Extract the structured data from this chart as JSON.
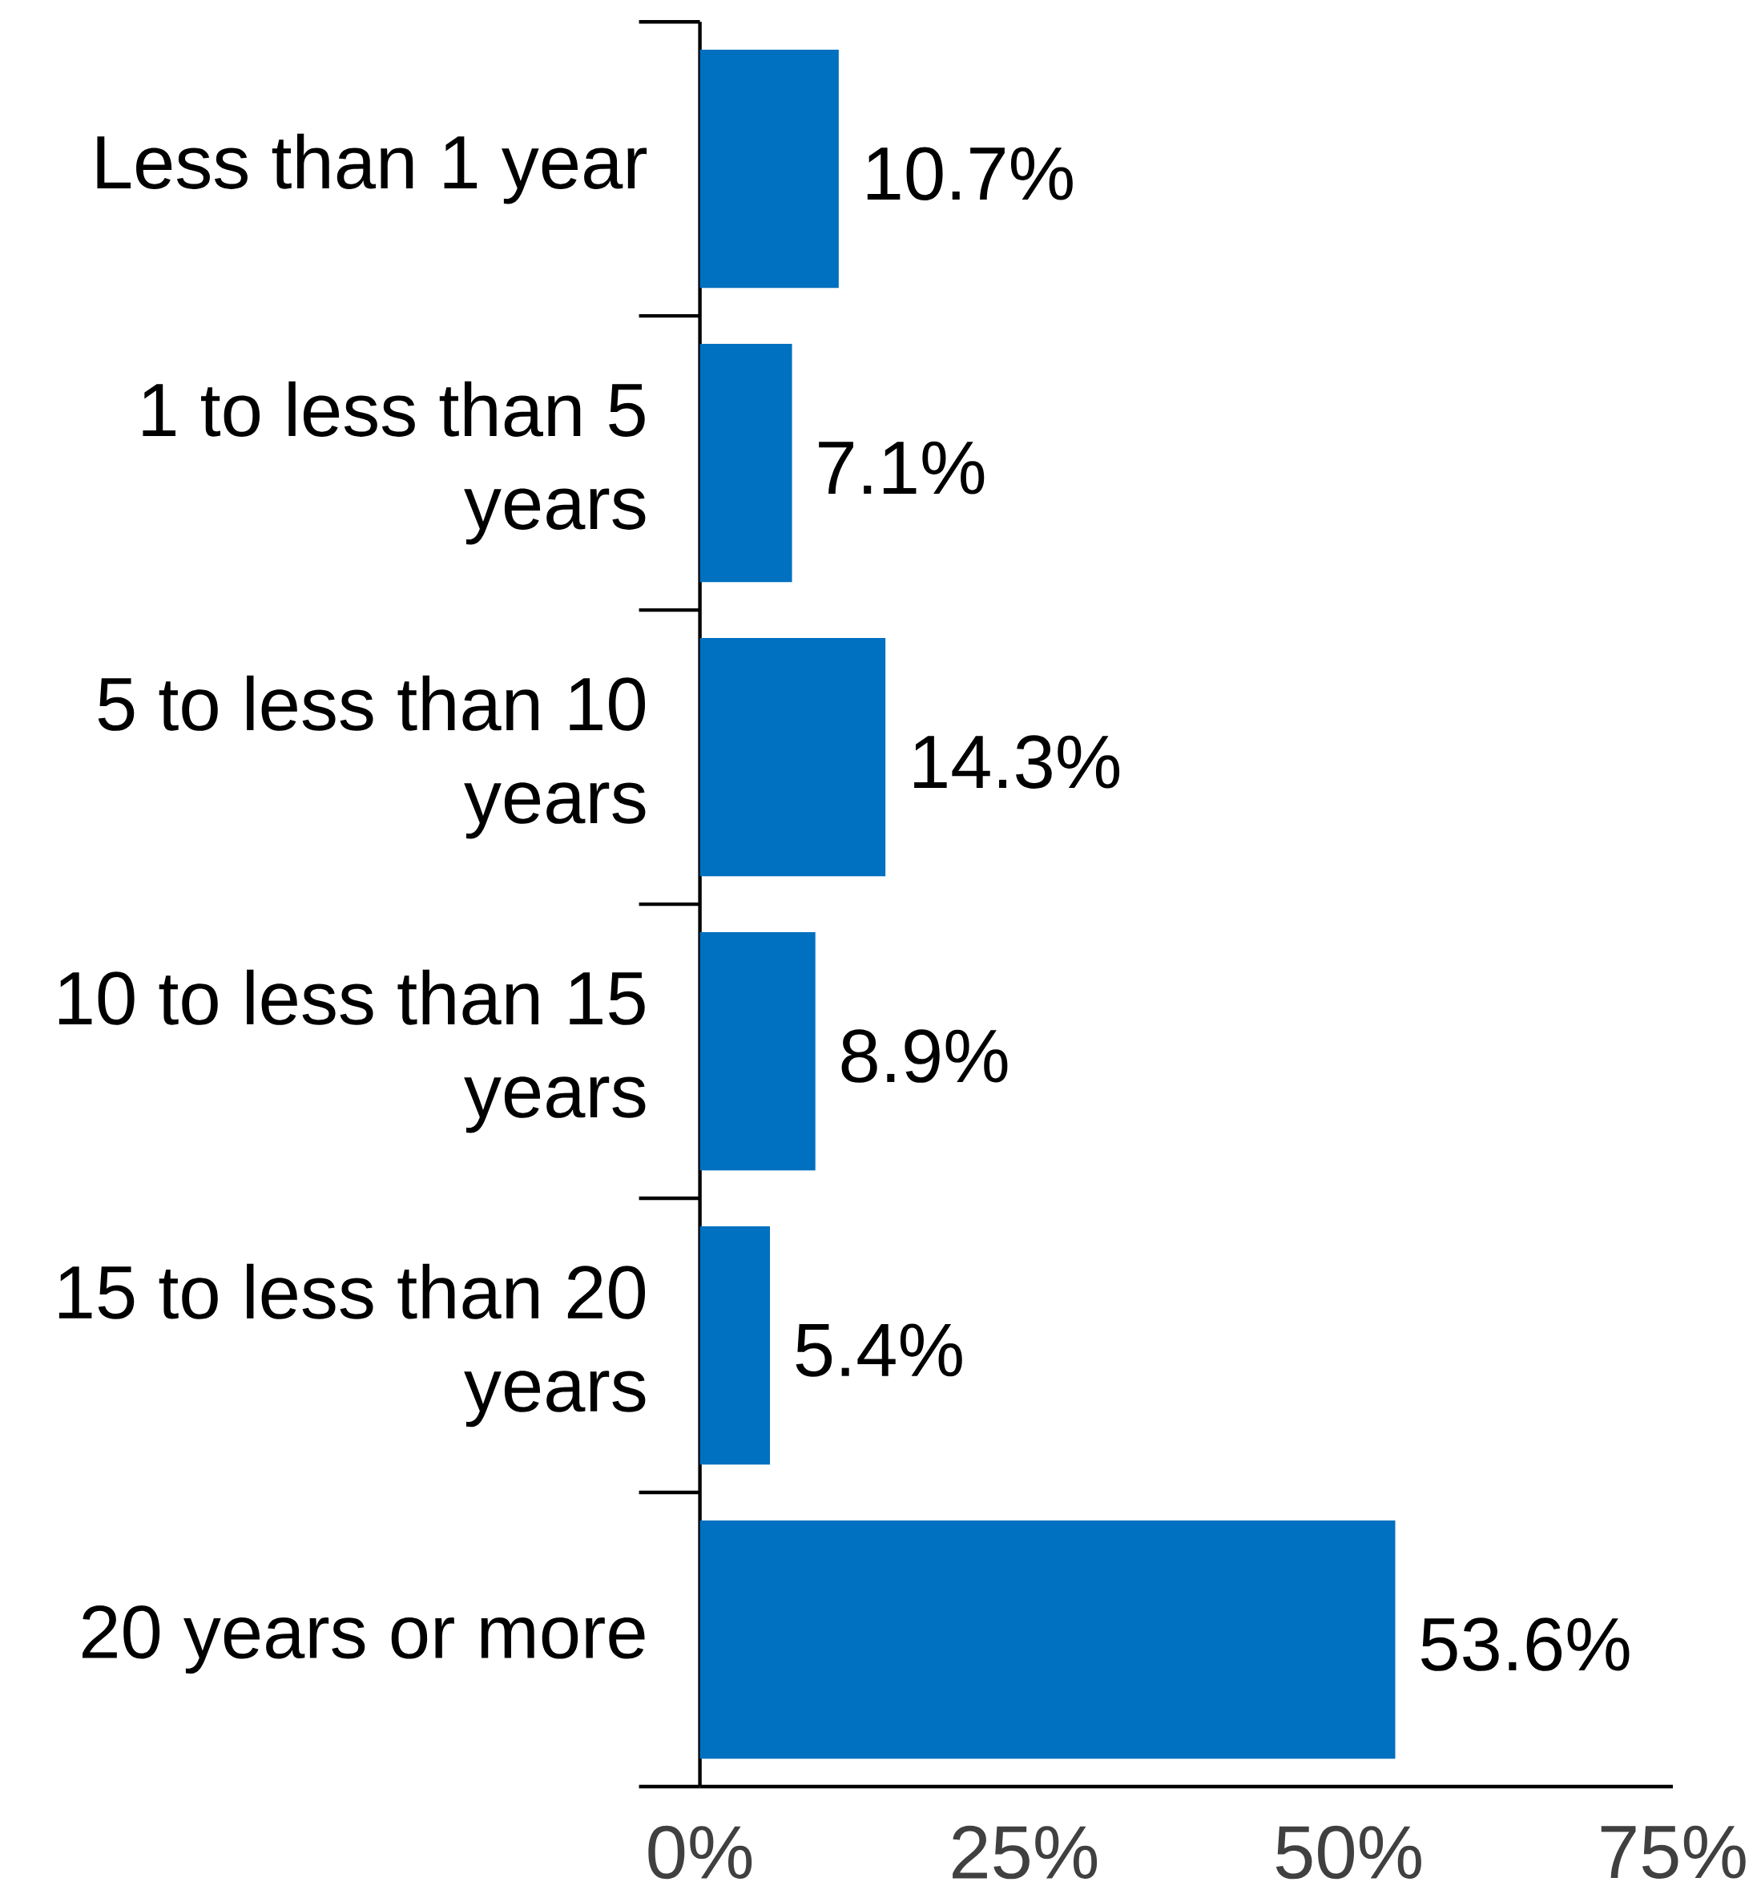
{
  "chart_data": {
    "type": "bar",
    "orientation": "horizontal",
    "categories": [
      "Less than 1 year",
      "1 to less than 5 years",
      "5 to less than 10 years",
      "10 to less than 15 years",
      "15 to less than 20 years",
      "20 years or more"
    ],
    "values": [
      10.7,
      7.1,
      14.3,
      8.9,
      5.4,
      53.6
    ],
    "value_labels": [
      "10.7%",
      "7.1%",
      "14.3%",
      "8.9%",
      "5.4%",
      "53.6%"
    ],
    "color": "#0070c0",
    "xlim": [
      0,
      75
    ],
    "xticks": [
      {
        "value": 0,
        "label": "0%"
      },
      {
        "value": 25,
        "label": "25%"
      },
      {
        "value": 50,
        "label": "50%"
      },
      {
        "value": 75,
        "label": "75%"
      }
    ]
  }
}
